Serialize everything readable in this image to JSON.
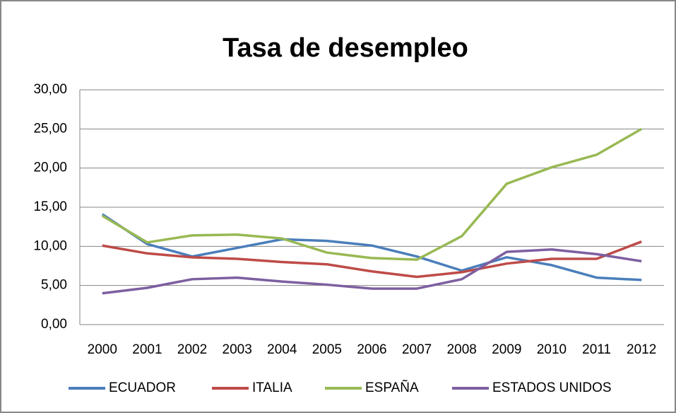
{
  "chart_data": {
    "type": "line",
    "title": "Tasa de desempleo",
    "categories": [
      "2000",
      "2001",
      "2002",
      "2003",
      "2004",
      "2005",
      "2006",
      "2007",
      "2008",
      "2009",
      "2010",
      "2011",
      "2012"
    ],
    "series": [
      {
        "name": "ECUADOR",
        "color": "#4a7ebb",
        "values": [
          14.1,
          10.3,
          8.7,
          9.8,
          10.9,
          10.7,
          10.1,
          8.7,
          6.9,
          8.6,
          7.6,
          6.0,
          5.7
        ]
      },
      {
        "name": "ITALIA",
        "color": "#be4b48",
        "values": [
          10.1,
          9.1,
          8.6,
          8.4,
          8.0,
          7.7,
          6.8,
          6.1,
          6.7,
          7.8,
          8.4,
          8.4,
          10.6
        ]
      },
      {
        "name": "ESPAÑA",
        "color": "#98b954",
        "values": [
          13.9,
          10.5,
          11.4,
          11.5,
          11.0,
          9.2,
          8.5,
          8.3,
          11.3,
          18.0,
          20.1,
          21.7,
          25.0
        ]
      },
      {
        "name": "ESTADOS UNIDOS",
        "color": "#7d5fa0",
        "values": [
          4.0,
          4.7,
          5.8,
          6.0,
          5.5,
          5.1,
          4.6,
          4.6,
          5.8,
          9.3,
          9.6,
          9.0,
          8.1
        ]
      }
    ],
    "ylim": [
      0,
      30
    ],
    "yticks": [
      {
        "value": 0,
        "label": "0,00"
      },
      {
        "value": 5,
        "label": "5,00"
      },
      {
        "value": 10,
        "label": "10,00"
      },
      {
        "value": 15,
        "label": "15,00"
      },
      {
        "value": 20,
        "label": "20,00"
      },
      {
        "value": 25,
        "label": "25,00"
      },
      {
        "value": 30,
        "label": "30,00"
      }
    ],
    "grid": true,
    "legend": "bottom"
  }
}
